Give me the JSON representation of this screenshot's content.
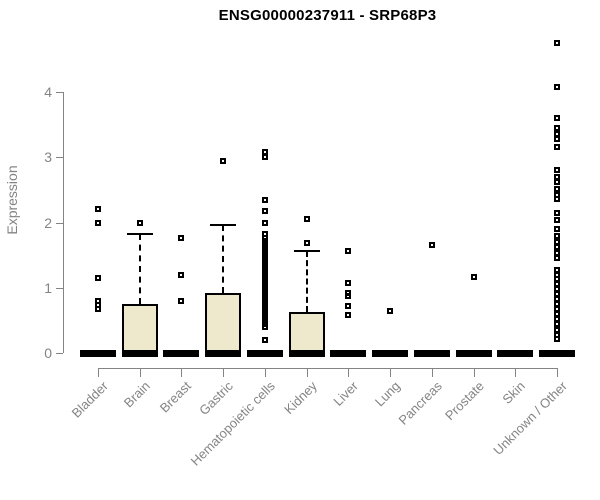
{
  "chart_data": {
    "type": "boxplot",
    "title": "ENSG00000237911 - SRP68P3",
    "xlabel": "",
    "ylabel": "Expression",
    "ylim": [
      0,
      4.9
    ],
    "yticks": [
      0,
      1,
      2,
      3,
      4
    ],
    "grid": false,
    "legend": null,
    "box_fill_color": "#EEE8CD",
    "box_border_color": "#000000",
    "axis_color": "#848484",
    "categories": [
      "Bladder",
      "Brain",
      "Breast",
      "Gastric",
      "Hematopoietic cells",
      "Kidney",
      "Liver",
      "Lung",
      "Pancreas",
      "Prostate",
      "Skin",
      "Unknown / Other"
    ],
    "series": [
      {
        "category": "Bladder",
        "q1": 0,
        "median": 0,
        "q3": 0,
        "whisker_low": 0,
        "whisker_high": 0,
        "outliers": [
          2.2,
          2.0,
          1.15,
          0.79,
          0.74,
          0.68
        ]
      },
      {
        "category": "Brain",
        "q1": 0,
        "median": 0,
        "q3": 0.75,
        "whisker_low": 0,
        "whisker_high": 1.83,
        "outliers": [
          2.0
        ]
      },
      {
        "category": "Breast",
        "q1": 0,
        "median": 0,
        "q3": 0,
        "whisker_low": 0,
        "whisker_high": 0,
        "outliers": [
          1.76,
          1.2,
          0.8
        ]
      },
      {
        "category": "Gastric",
        "q1": 0,
        "median": 0,
        "q3": 0.92,
        "whisker_low": 0,
        "whisker_high": 1.96,
        "outliers": [
          2.95
        ]
      },
      {
        "category": "Hematopoietic cells",
        "q1": 0,
        "median": 0,
        "q3": 0,
        "whisker_low": 0,
        "whisker_high": 0,
        "outliers": [
          3.08,
          3.0,
          2.34,
          2.17,
          2.0,
          1.83,
          1.76,
          1.72,
          1.68,
          1.64,
          1.6,
          1.56,
          1.52,
          1.48,
          1.44,
          1.4,
          1.36,
          1.32,
          1.28,
          1.24,
          1.2,
          1.16,
          1.12,
          1.08,
          1.04,
          1.0,
          0.96,
          0.92,
          0.88,
          0.84,
          0.8,
          0.76,
          0.72,
          0.68,
          0.64,
          0.6,
          0.56,
          0.52,
          0.48,
          0.44,
          0.4,
          0.2
        ]
      },
      {
        "category": "Kidney",
        "q1": 0,
        "median": 0,
        "q3": 0.63,
        "whisker_low": 0,
        "whisker_high": 1.57,
        "outliers": [
          2.05,
          1.68
        ]
      },
      {
        "category": "Liver",
        "q1": 0,
        "median": 0,
        "q3": 0,
        "whisker_low": 0,
        "whisker_high": 0,
        "outliers": [
          1.57,
          1.08,
          0.92,
          0.88,
          0.72,
          0.58
        ]
      },
      {
        "category": "Lung",
        "q1": 0,
        "median": 0,
        "q3": 0,
        "whisker_low": 0,
        "whisker_high": 0,
        "outliers": [
          0.65
        ]
      },
      {
        "category": "Pancreas",
        "q1": 0,
        "median": 0,
        "q3": 0,
        "whisker_low": 0,
        "whisker_high": 0,
        "outliers": [
          1.65
        ]
      },
      {
        "category": "Prostate",
        "q1": 0,
        "median": 0,
        "q3": 0,
        "whisker_low": 0,
        "whisker_high": 0,
        "outliers": [
          1.17
        ]
      },
      {
        "category": "Skin",
        "q1": 0,
        "median": 0,
        "q3": 0,
        "whisker_low": 0,
        "whisker_high": 0,
        "outliers": []
      },
      {
        "category": "Unknown / Other",
        "q1": 0,
        "median": 0,
        "q3": 0,
        "whisker_low": 0,
        "whisker_high": 0,
        "outliers": [
          4.75,
          4.08,
          3.6,
          3.45,
          3.36,
          3.28,
          3.16,
          2.8,
          2.7,
          2.62,
          2.52,
          2.42,
          2.36,
          2.14,
          2.04,
          1.9,
          1.8,
          1.7,
          1.62,
          1.54,
          1.46,
          1.27,
          1.2,
          1.13,
          1.06,
          0.98,
          0.9,
          0.82,
          0.75,
          0.68,
          0.6,
          0.52,
          0.44,
          0.36,
          0.28,
          0.21
        ]
      }
    ]
  }
}
